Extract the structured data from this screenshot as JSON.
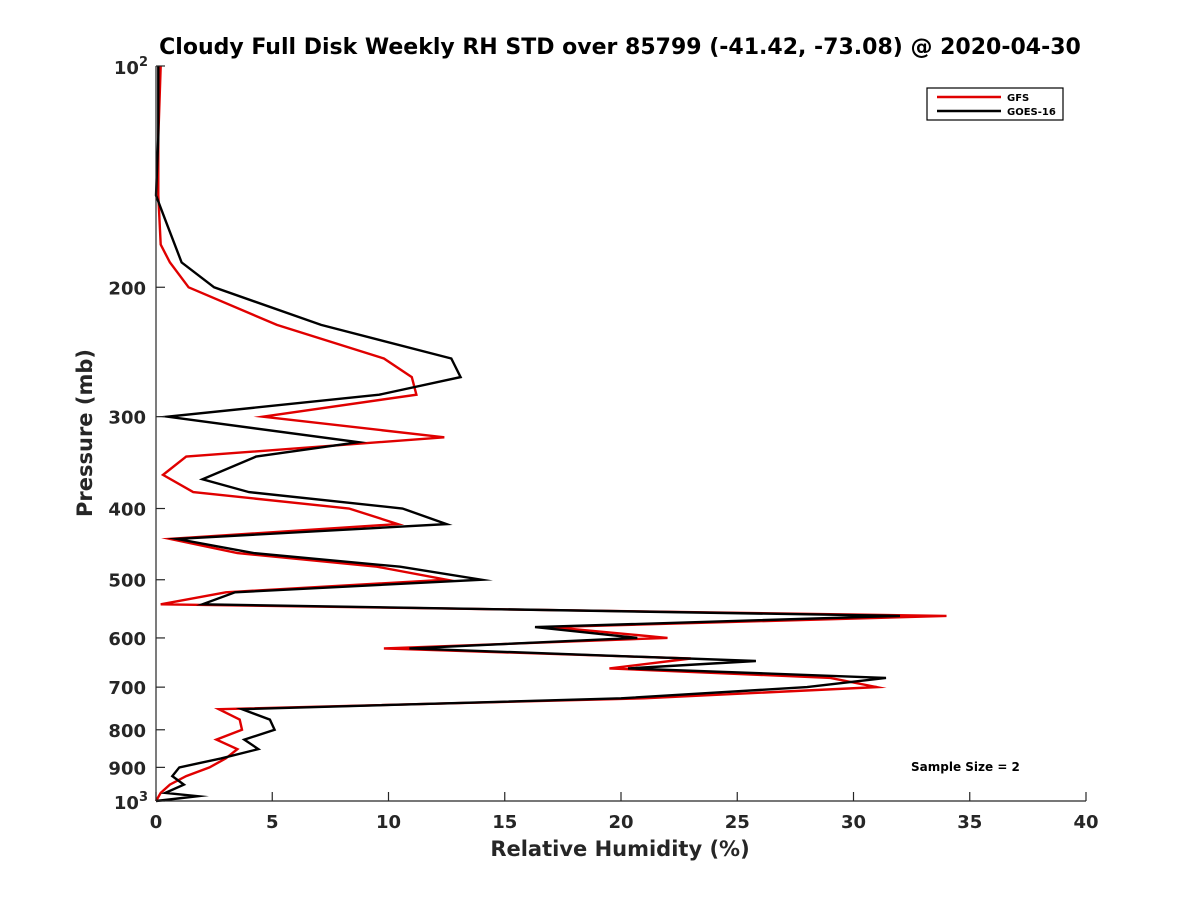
{
  "chart_data": {
    "type": "line",
    "title": "Cloudy Full Disk Weekly RH STD over 85799 (-41.42, -73.08) @ 2020-04-30",
    "xlabel": "Relative Humidity (%)",
    "ylabel": "Pressure (mb)",
    "xlim": [
      0,
      40
    ],
    "ylim": [
      100,
      1000
    ],
    "yscale": "log",
    "y_reversed": true,
    "x_ticks": [
      0,
      5,
      10,
      15,
      20,
      25,
      30,
      35,
      40
    ],
    "x_tick_labels": [
      "0",
      "5",
      "10",
      "15",
      "20",
      "25",
      "30",
      "35",
      "40"
    ],
    "y_ticks": [
      {
        "value": 100,
        "base": "10",
        "exp": "2"
      },
      {
        "value": 200,
        "label": "200"
      },
      {
        "value": 300,
        "label": "300"
      },
      {
        "value": 400,
        "label": "400"
      },
      {
        "value": 500,
        "label": "500"
      },
      {
        "value": 600,
        "label": "600"
      },
      {
        "value": 700,
        "label": "700"
      },
      {
        "value": 800,
        "label": "800"
      },
      {
        "value": 900,
        "label": "900"
      },
      {
        "value": 1000,
        "base": "10",
        "exp": "3"
      }
    ],
    "grid": false,
    "legend_position": "top-right",
    "annotation": "Sample Size = 2",
    "series": [
      {
        "name": "GFS",
        "color": "#e00000",
        "points": [
          [
            0.2,
            100
          ],
          [
            0.1,
            125
          ],
          [
            0.1,
            150
          ],
          [
            0.2,
            175
          ],
          [
            0.6,
            185
          ],
          [
            1.4,
            200
          ],
          [
            5.2,
            225
          ],
          [
            9.8,
            250
          ],
          [
            11.0,
            265
          ],
          [
            11.2,
            280
          ],
          [
            4.6,
            300
          ],
          [
            12.4,
            320
          ],
          [
            1.3,
            340
          ],
          [
            0.3,
            360
          ],
          [
            1.6,
            380
          ],
          [
            8.3,
            400
          ],
          [
            10.4,
            420
          ],
          [
            0.6,
            440
          ],
          [
            3.5,
            460
          ],
          [
            9.5,
            480
          ],
          [
            12.5,
            500
          ],
          [
            3.0,
            520
          ],
          [
            0.2,
            540
          ],
          [
            34.0,
            560
          ],
          [
            17.0,
            580
          ],
          [
            22.0,
            600
          ],
          [
            9.8,
            620
          ],
          [
            23.0,
            640
          ],
          [
            19.5,
            660
          ],
          [
            29.0,
            680
          ],
          [
            31.0,
            700
          ],
          [
            21.0,
            725
          ],
          [
            2.7,
            750
          ],
          [
            3.6,
            775
          ],
          [
            3.7,
            800
          ],
          [
            2.6,
            825
          ],
          [
            3.5,
            850
          ],
          [
            3.0,
            875
          ],
          [
            2.3,
            900
          ],
          [
            1.3,
            925
          ],
          [
            0.6,
            950
          ],
          [
            0.2,
            975
          ],
          [
            0.0,
            1000
          ]
        ]
      },
      {
        "name": "GOES-16",
        "color": "#000000",
        "points": [
          [
            0.1,
            100
          ],
          [
            0.1,
            125
          ],
          [
            0.0,
            150
          ],
          [
            0.5,
            165
          ],
          [
            1.1,
            185
          ],
          [
            2.5,
            200
          ],
          [
            7.1,
            225
          ],
          [
            12.7,
            250
          ],
          [
            13.1,
            265
          ],
          [
            9.6,
            280
          ],
          [
            0.5,
            300
          ],
          [
            8.7,
            325
          ],
          [
            4.3,
            340
          ],
          [
            2.0,
            365
          ],
          [
            4.0,
            380
          ],
          [
            10.6,
            400
          ],
          [
            12.5,
            420
          ],
          [
            0.9,
            440
          ],
          [
            4.2,
            460
          ],
          [
            10.5,
            480
          ],
          [
            14.0,
            500
          ],
          [
            3.4,
            520
          ],
          [
            2.0,
            540
          ],
          [
            32.0,
            560
          ],
          [
            16.3,
            580
          ],
          [
            20.7,
            600
          ],
          [
            10.9,
            620
          ],
          [
            25.8,
            645
          ],
          [
            20.3,
            660
          ],
          [
            31.4,
            680
          ],
          [
            28.0,
            700
          ],
          [
            20.0,
            725
          ],
          [
            3.7,
            750
          ],
          [
            4.9,
            775
          ],
          [
            5.1,
            800
          ],
          [
            3.8,
            825
          ],
          [
            4.4,
            850
          ],
          [
            2.8,
            875
          ],
          [
            1.0,
            900
          ],
          [
            0.7,
            925
          ],
          [
            1.2,
            950
          ],
          [
            0.4,
            975
          ],
          [
            1.8,
            985
          ],
          [
            0.0,
            1000
          ]
        ]
      }
    ]
  }
}
